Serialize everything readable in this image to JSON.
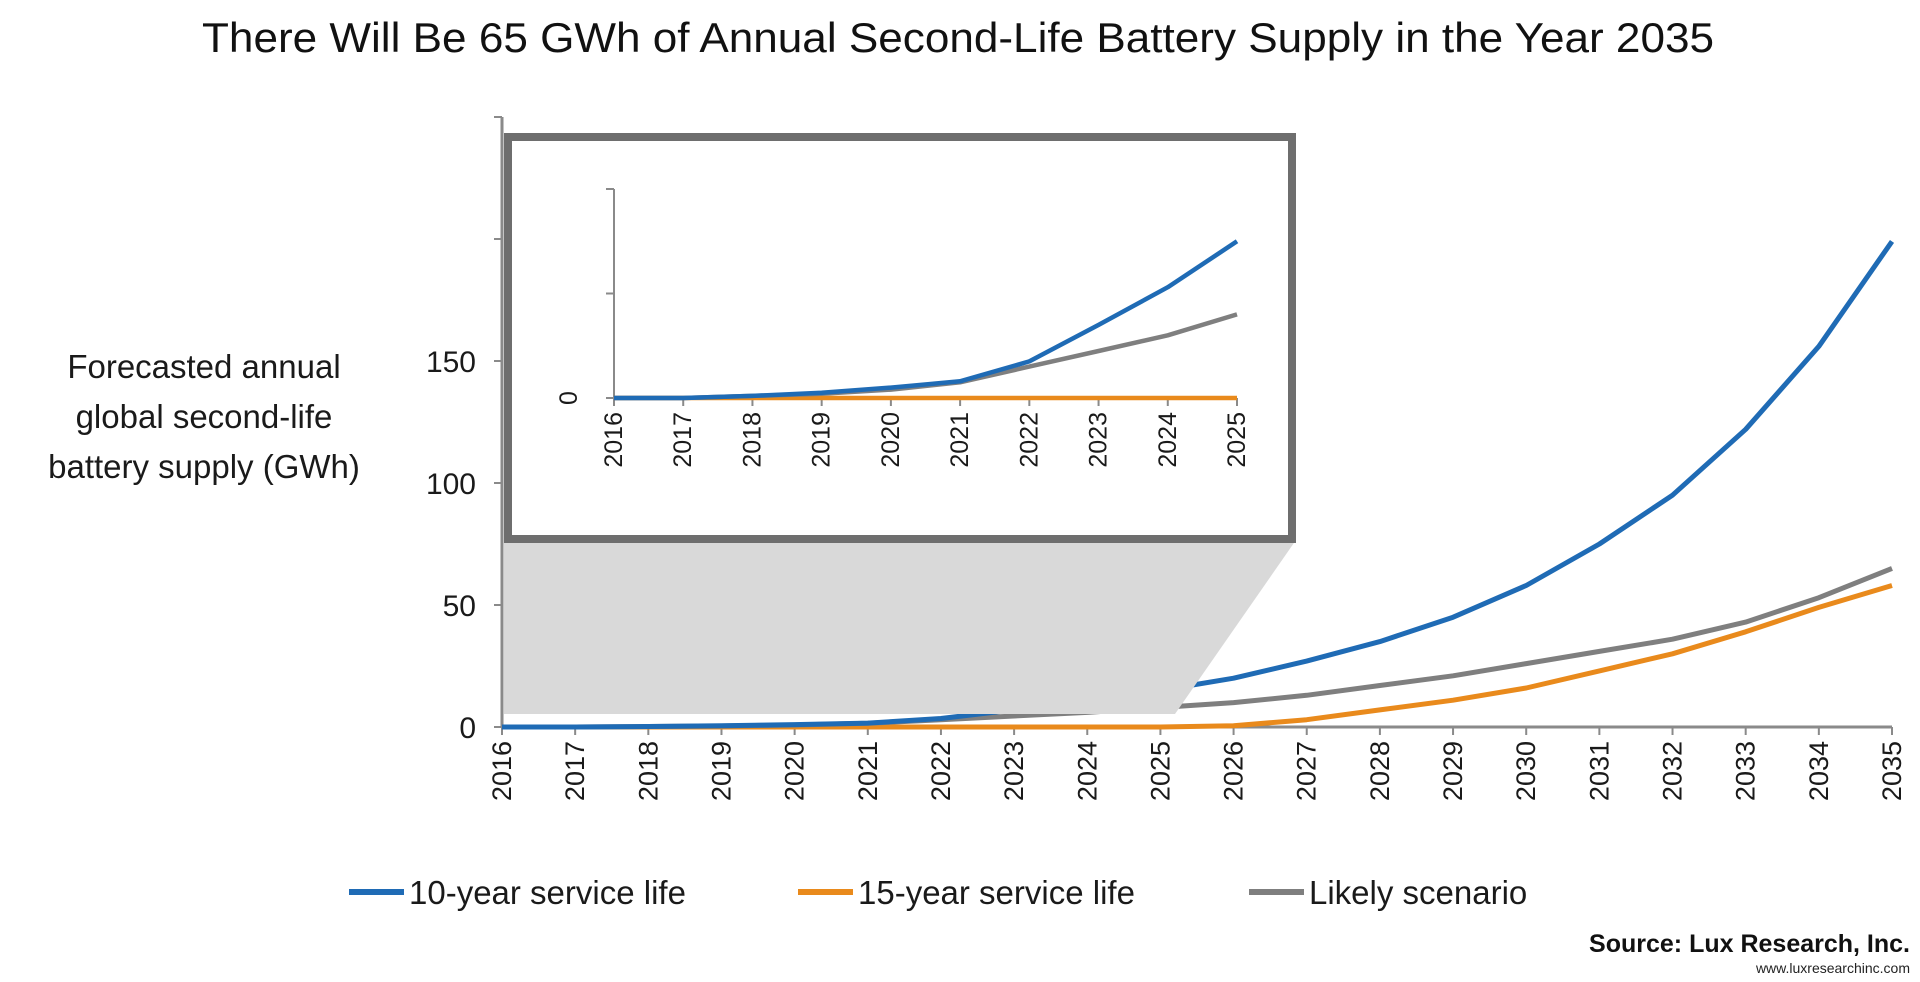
{
  "chart_data": {
    "type": "line",
    "title": "There Will Be 65 GWh of Annual Second-Life Battery Supply in the Year 2035",
    "ylabel_lines": [
      "Forecasted annual",
      "global second-life",
      "battery supply (GWh)"
    ],
    "xlabel": "",
    "x": [
      "2016",
      "2017",
      "2018",
      "2019",
      "2020",
      "2021",
      "2022",
      "2023",
      "2024",
      "2025",
      "2026",
      "2027",
      "2028",
      "2029",
      "2030",
      "2031",
      "2032",
      "2033",
      "2034",
      "2035"
    ],
    "ylim": [
      0,
      250
    ],
    "yticks": [
      0,
      50,
      100,
      150,
      200,
      250
    ],
    "ytick_labels": [
      "0",
      "50",
      "100",
      "150",
      "",
      ""
    ],
    "grid": false,
    "legend_position": "bottom",
    "series": [
      {
        "name": "10-year service life",
        "color": "#1f6bb5",
        "values": [
          0,
          0,
          0.2,
          0.5,
          1,
          1.6,
          3.5,
          7,
          10.6,
          15,
          20,
          27,
          35,
          45,
          58,
          75,
          95,
          122,
          156,
          199
        ]
      },
      {
        "name": "15-year service life",
        "color": "#e98a1c",
        "values": [
          0,
          0,
          0,
          0,
          0,
          0,
          0,
          0,
          0,
          0,
          0.5,
          3,
          7,
          11,
          16,
          23,
          30,
          39,
          49,
          58
        ]
      },
      {
        "name": "Likely scenario",
        "color": "#7f7f7f",
        "values": [
          0,
          0,
          0.2,
          0.4,
          0.8,
          1.5,
          3,
          4.5,
          6,
          8,
          10,
          13,
          17,
          21,
          26,
          31,
          36,
          43,
          53,
          65
        ]
      }
    ],
    "inset": {
      "x": [
        "2016",
        "2017",
        "2018",
        "2019",
        "2020",
        "2021",
        "2022",
        "2023",
        "2024",
        "2025"
      ],
      "ylim": [
        0,
        20
      ],
      "yticks": [
        0,
        10,
        20
      ],
      "ytick_labels": [
        "0",
        "",
        ""
      ]
    }
  },
  "source": {
    "label": "Source: Lux Research, Inc.",
    "url": "www.luxresearchinc.com"
  }
}
